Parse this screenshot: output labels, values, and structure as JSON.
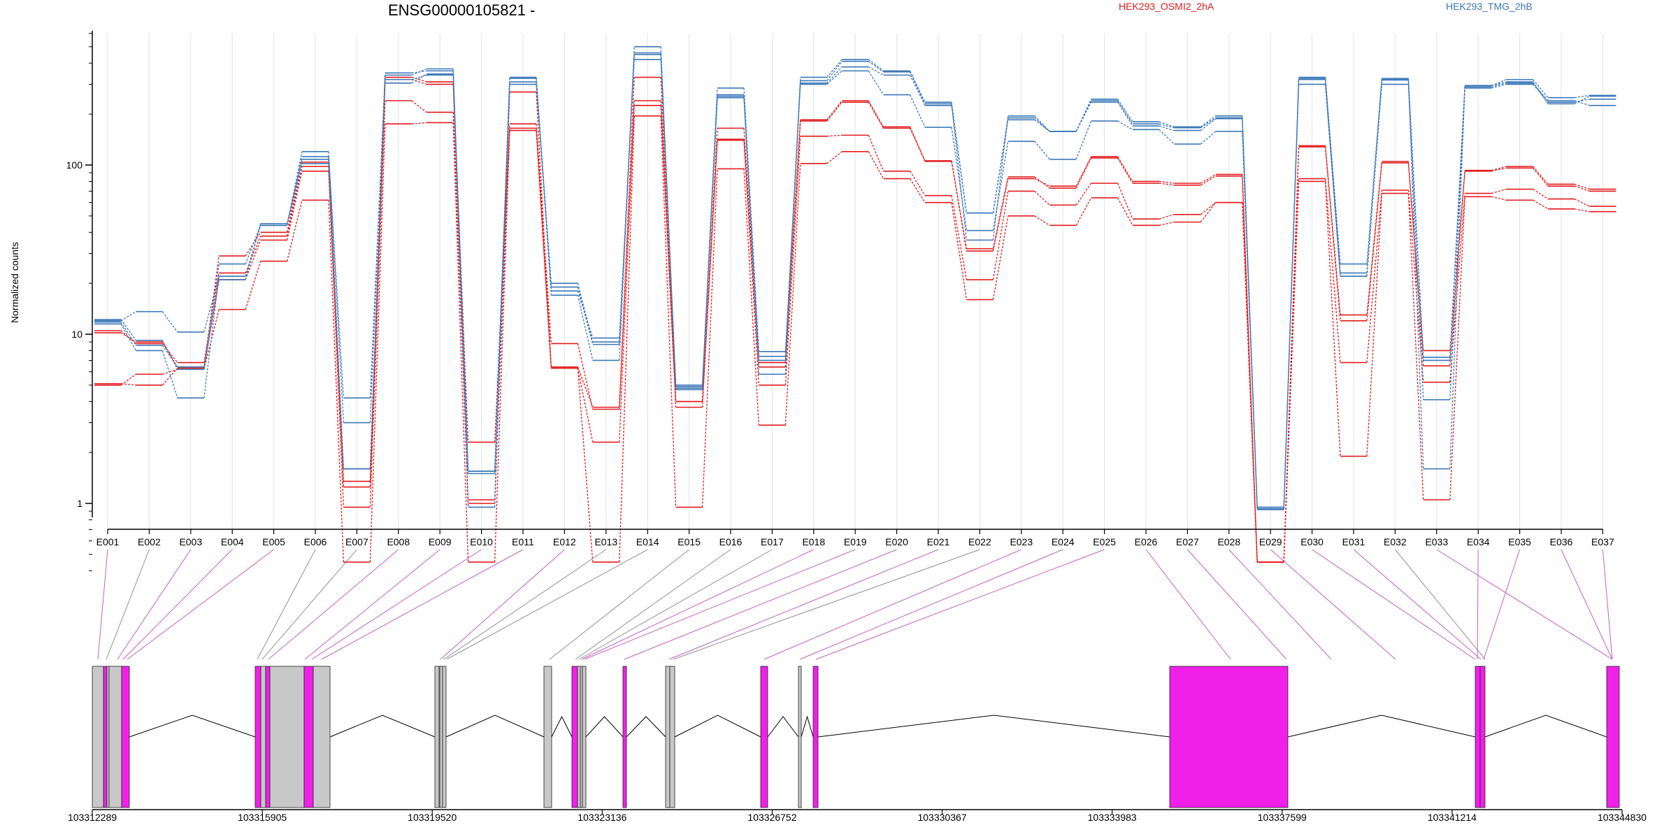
{
  "colors": {
    "series_red": "#e31a1c",
    "series_blue": "#3b78b8",
    "exon_tested": "#f020e8",
    "exon_other": "#c8c8c8",
    "link_tested": "#c060c0",
    "link_other": "#909090",
    "grid": "#dde3ee"
  },
  "chart_data": {
    "type": "line",
    "title": "ENSG00000105821 -",
    "ylabel": "Normalized counts",
    "yscale": "log",
    "ylim": [
      0.4,
      600
    ],
    "yticks": [
      "1",
      "10",
      "100"
    ],
    "yticks_values": [
      1,
      10,
      100
    ],
    "legend": {
      "placement": "top",
      "entries": [
        {
          "label": "HEK293_OSMI2_2hA",
          "color": "#e31a1c"
        },
        {
          "label": "HEK293_TMG_2hB",
          "color": "#3b78b8"
        }
      ]
    },
    "categories": [
      "E001",
      "E002",
      "E003",
      "E004",
      "E005",
      "E006",
      "E007",
      "E008",
      "E009",
      "E010",
      "E011",
      "E012",
      "E013",
      "E014",
      "E015",
      "E016",
      "E017",
      "E018",
      "E019",
      "E020",
      "E021",
      "E022",
      "E023",
      "E024",
      "E025",
      "E026",
      "E027",
      "E028",
      "E029",
      "E030",
      "E031",
      "E032",
      "E033",
      "E034",
      "E035",
      "E036",
      "E037"
    ],
    "tested_exons": [
      "E001",
      "E003",
      "E004",
      "E005",
      "E008",
      "E009",
      "E010",
      "E011",
      "E012",
      "E018",
      "E019",
      "E020",
      "E021",
      "E023",
      "E024",
      "E025",
      "E026",
      "E027",
      "E028",
      "E029",
      "E030",
      "E031",
      "E033",
      "E034",
      "E035",
      "E036",
      "E037"
    ],
    "series": [
      {
        "group": "red",
        "values": [
          5.0,
          5.8,
          6.2,
          14,
          27,
          62,
          0.45,
          175,
          178,
          0.45,
          160,
          6.3,
          0.45,
          195,
          0.95,
          95,
          2.9,
          102,
          120,
          83,
          60,
          16,
          50,
          44,
          64,
          44,
          46,
          60,
          0.45,
          80,
          1.9,
          68,
          1.05,
          65,
          62,
          55,
          53
        ]
      },
      {
        "group": "red",
        "values": [
          5.1,
          5.0,
          6.3,
          21,
          36,
          92,
          0.95,
          240,
          205,
          1.05,
          165,
          6.3,
          2.3,
          225,
          3.7,
          140,
          5.0,
          148,
          150,
          92,
          66,
          21,
          70,
          58,
          78,
          48,
          51,
          60,
          0.45,
          83,
          6.8,
          71,
          5.2,
          68,
          72,
          63,
          57
        ]
      },
      {
        "group": "red",
        "values": [
          10.5,
          8.8,
          6.8,
          23,
          38,
          98,
          1.25,
          330,
          310,
          2.3,
          175,
          8.8,
          3.6,
          240,
          4.0,
          165,
          6.8,
          185,
          240,
          168,
          106,
          31,
          83,
          75,
          112,
          80,
          78,
          88,
          0.45,
          130,
          13,
          105,
          6.5,
          93,
          98,
          77,
          72
        ]
      },
      {
        "group": "red",
        "values": [
          10.2,
          9.0,
          6.4,
          29,
          40,
          104,
          1.35,
          320,
          300,
          1.0,
          270,
          6.4,
          3.7,
          330,
          4.0,
          142,
          6.4,
          182,
          235,
          165,
          105,
          32,
          85,
          73,
          110,
          78,
          76,
          86,
          0.45,
          128,
          12,
          103,
          8.0,
          92,
          96,
          75,
          70
        ]
      },
      {
        "group": "blue",
        "values": [
          11.5,
          8.0,
          4.2,
          22,
          44,
          112,
          4.2,
          340,
          370,
          1.55,
          330,
          17,
          7.0,
          500,
          4.8,
          255,
          5.8,
          330,
          420,
          360,
          235,
          52,
          190,
          158,
          240,
          175,
          166,
          190,
          0.95,
          330,
          26,
          325,
          1.6,
          295,
          320,
          250,
          258
        ]
      },
      {
        "group": "blue",
        "values": [
          11.8,
          8.6,
          6.4,
          26,
          44,
          120,
          3.0,
          350,
          360,
          0.95,
          310,
          20,
          9.0,
          460,
          4.7,
          260,
          7.4,
          300,
          360,
          260,
          167,
          41,
          138,
          108,
          182,
          162,
          133,
          158,
          0.92,
          300,
          22,
          300,
          4.1,
          290,
          305,
          240,
          225
        ]
      },
      {
        "group": "blue",
        "values": [
          12.0,
          13.6,
          10.3,
          22,
          44,
          102,
          1.6,
          320,
          340,
          1.55,
          325,
          19,
          8.7,
          450,
          5.0,
          285,
          7.9,
          315,
          410,
          355,
          230,
          36,
          195,
          158,
          245,
          180,
          168,
          195,
          0.93,
          325,
          23,
          320,
          7.3,
          295,
          310,
          230,
          255
        ]
      },
      {
        "group": "blue",
        "values": [
          12.2,
          9.2,
          6.2,
          21,
          45,
          108,
          1.6,
          305,
          345,
          1.5,
          300,
          18,
          9.5,
          420,
          4.9,
          250,
          7.0,
          305,
          380,
          340,
          225,
          52,
          185,
          158,
          235,
          170,
          160,
          188,
          0.93,
          320,
          22,
          318,
          7.0,
          285,
          300,
          235,
          245
        ]
      }
    ],
    "genomic_axis": {
      "ticks": [
        "103312289",
        "103315905",
        "103319520",
        "103323136",
        "103326752",
        "103330367",
        "103333983",
        "103337599",
        "103341214",
        "103344830"
      ],
      "tick_values": [
        103312289,
        103315905,
        103319520,
        103323136,
        103326752,
        103330367,
        103333983,
        103337599,
        103341214,
        103344830
      ]
    }
  }
}
